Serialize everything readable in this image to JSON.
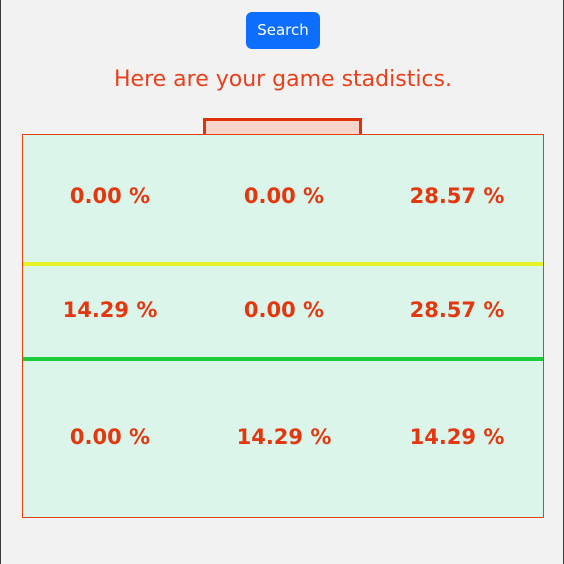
{
  "search_button": {
    "label": "Search"
  },
  "heading": "Here are your game stadistics.",
  "colors": {
    "accent": "#e8401c",
    "button": "#0d6efd",
    "field_bg": "#dbf5ea",
    "line_upper": "#e6f425",
    "line_lower": "#1ccc3a"
  },
  "zones": [
    [
      "0.00 %",
      "0.00 %",
      "28.57 %"
    ],
    [
      "14.29 %",
      "0.00 %",
      "28.57 %"
    ],
    [
      "0.00 %",
      "14.29 %",
      "14.29 %"
    ]
  ]
}
